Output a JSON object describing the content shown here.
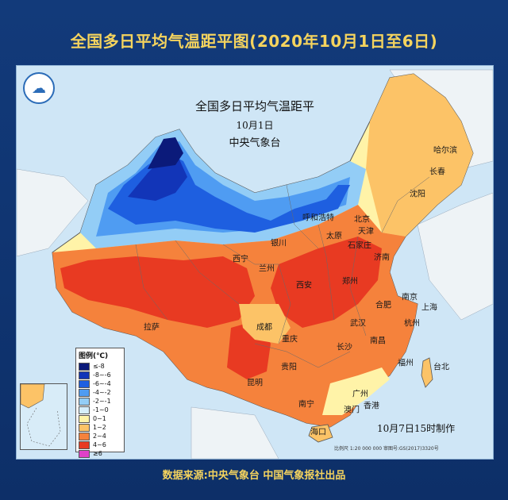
{
  "banner": {
    "title": "全国多日平均气温距平图(2020年10月1日至6日)"
  },
  "map": {
    "heading": "全国多日平均气温距平",
    "date": "10月1日",
    "agency": "中央气象台",
    "made_note": "10月7日15时制作",
    "scale_note": "比例尺 1:20 000 000    审图号:GS(2017)3320号",
    "logo_icon": "cma-logo-icon",
    "cities": [
      {
        "name": "哈尔滨"
      },
      {
        "name": "长春"
      },
      {
        "name": "沈阳"
      },
      {
        "name": "呼和浩特"
      },
      {
        "name": "北京"
      },
      {
        "name": "天津"
      },
      {
        "name": "银川"
      },
      {
        "name": "太原"
      },
      {
        "name": "石家庄"
      },
      {
        "name": "济南"
      },
      {
        "name": "西宁"
      },
      {
        "name": "兰州"
      },
      {
        "name": "郑州"
      },
      {
        "name": "西安"
      },
      {
        "name": "南京"
      },
      {
        "name": "合肥"
      },
      {
        "name": "上海"
      },
      {
        "name": "杭州"
      },
      {
        "name": "成都"
      },
      {
        "name": "武汉"
      },
      {
        "name": "重庆"
      },
      {
        "name": "长沙"
      },
      {
        "name": "南昌"
      },
      {
        "name": "拉萨"
      },
      {
        "name": "贵阳"
      },
      {
        "name": "福州"
      },
      {
        "name": "台北"
      },
      {
        "name": "昆明"
      },
      {
        "name": "广州"
      },
      {
        "name": "南宁"
      },
      {
        "name": "澳门"
      },
      {
        "name": "香港"
      },
      {
        "name": "海口"
      }
    ]
  },
  "legend": {
    "title": "图例(℃)",
    "items": [
      {
        "label": "≤-8",
        "color": "#0b1a7a"
      },
      {
        "label": "-8~-6",
        "color": "#1235b8"
      },
      {
        "label": "-6~-4",
        "color": "#1e5fe0"
      },
      {
        "label": "-4~-2",
        "color": "#4f9cf2"
      },
      {
        "label": "-2~-1",
        "color": "#93cdf6"
      },
      {
        "label": "-1~0",
        "color": "#d6eefb"
      },
      {
        "label": "0~1",
        "color": "#fff3a8"
      },
      {
        "label": "1~2",
        "color": "#fcc367"
      },
      {
        "label": "2~4",
        "color": "#f5823c"
      },
      {
        "label": "4~6",
        "color": "#e83a22"
      },
      {
        "label": "≥6",
        "color": "#e040c8"
      }
    ]
  },
  "footer": {
    "source": "数据来源:中央气象台  中国气象报社出品"
  }
}
